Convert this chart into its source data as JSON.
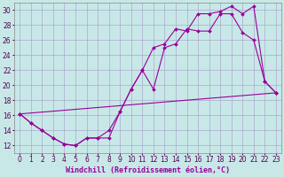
{
  "background_color": "#c8e8e8",
  "grid_color": "#aaaacc",
  "line_color": "#990099",
  "marker": "D",
  "markersize": 2,
  "linewidth": 0.8,
  "xlabel": "Windchill (Refroidissement éolien,°C)",
  "xlabel_fontsize": 6.0,
  "tick_fontsize": 5.5,
  "xlim": [
    -0.5,
    23.5
  ],
  "ylim": [
    11,
    31
  ],
  "yticks": [
    12,
    14,
    16,
    18,
    20,
    22,
    24,
    26,
    28,
    30
  ],
  "xticks": [
    0,
    1,
    2,
    3,
    4,
    5,
    6,
    7,
    8,
    9,
    10,
    11,
    12,
    13,
    14,
    15,
    16,
    17,
    18,
    19,
    20,
    21,
    22,
    23
  ],
  "line1_x": [
    0,
    1,
    2,
    3,
    4,
    5,
    6,
    7,
    8,
    9,
    10,
    11,
    12,
    13,
    14,
    15,
    16,
    17,
    18,
    19,
    20,
    21,
    22,
    23
  ],
  "line1_y": [
    16.2,
    15.0,
    14.0,
    13.0,
    12.2,
    12.0,
    13.0,
    13.0,
    13.0,
    16.5,
    19.5,
    22.0,
    19.5,
    25.0,
    25.5,
    27.5,
    27.2,
    27.2,
    29.5,
    29.5,
    27.0,
    26.0,
    20.5,
    19.0
  ],
  "line2_x": [
    0,
    1,
    2,
    3,
    4,
    5,
    6,
    7,
    8,
    9,
    10,
    11,
    12,
    13,
    14,
    15,
    16,
    17,
    18,
    19,
    20,
    21,
    22,
    23
  ],
  "line2_y": [
    16.2,
    15.0,
    14.0,
    13.0,
    12.2,
    12.0,
    13.0,
    13.0,
    14.0,
    16.5,
    19.5,
    22.0,
    25.0,
    25.5,
    27.5,
    27.2,
    29.5,
    29.5,
    29.8,
    30.5,
    29.5,
    30.5,
    20.5,
    19.0
  ],
  "line3_x": [
    0,
    23
  ],
  "line3_y": [
    16.2,
    19.0
  ]
}
